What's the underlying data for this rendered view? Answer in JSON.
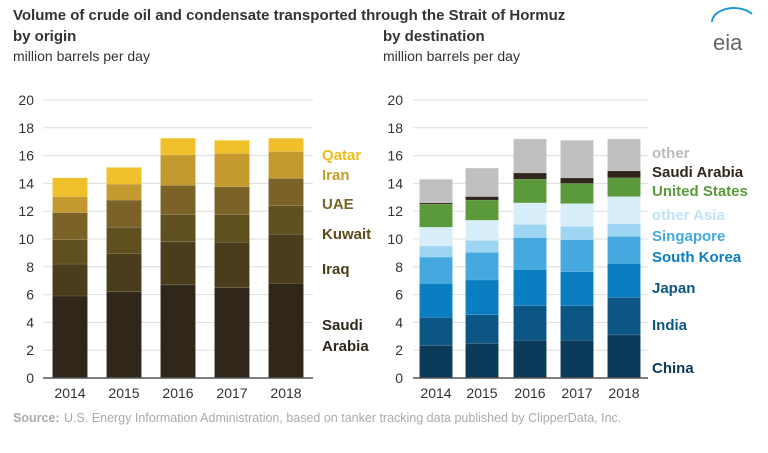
{
  "title": "Volume of crude oil and condensate transported through the Strait of Hormuz",
  "logo": "eia",
  "source_label": "Source:",
  "source_text": "U.S. Energy Information Administration, based on tanker tracking data published by ClipperData, Inc.",
  "chart_data": [
    {
      "type": "bar",
      "stacked": true,
      "title": "by origin",
      "ylabel": "million barrels per day",
      "ylim": [
        0,
        20
      ],
      "yticks": [
        0,
        2,
        4,
        6,
        8,
        10,
        12,
        14,
        16,
        18,
        20
      ],
      "grid": true,
      "legend": "right (inline labels)",
      "categories": [
        "2014",
        "2015",
        "2016",
        "2017",
        "2018"
      ],
      "series": [
        {
          "name": "Saudi Arabia",
          "color": "#30271a",
          "values": [
            5.9,
            6.2,
            6.7,
            6.5,
            6.8
          ]
        },
        {
          "name": "Iraq",
          "color": "#4a3d1c",
          "values": [
            2.3,
            2.75,
            3.1,
            3.25,
            3.55
          ]
        },
        {
          "name": "Kuwait",
          "color": "#61501f",
          "values": [
            1.75,
            1.9,
            1.95,
            2.0,
            2.05
          ]
        },
        {
          "name": "UAE",
          "color": "#7b6328",
          "values": [
            1.95,
            1.95,
            2.1,
            2.0,
            1.95
          ]
        },
        {
          "name": "Iran",
          "color": "#c49a30",
          "values": [
            1.15,
            1.15,
            2.2,
            2.4,
            1.95
          ]
        },
        {
          "name": "Qatar",
          "color": "#f0c02a",
          "values": [
            1.35,
            1.2,
            1.2,
            0.95,
            0.95
          ]
        }
      ]
    },
    {
      "type": "bar",
      "stacked": true,
      "title": "by destination",
      "ylabel": "million barrels per day",
      "ylim": [
        0,
        20
      ],
      "yticks": [
        0,
        2,
        4,
        6,
        8,
        10,
        12,
        14,
        16,
        18,
        20
      ],
      "grid": true,
      "legend": "right (inline labels)",
      "categories": [
        "2014",
        "2015",
        "2016",
        "2017",
        "2018"
      ],
      "series": [
        {
          "name": "China",
          "color": "#0b3a5a",
          "values": [
            2.35,
            2.5,
            2.7,
            2.7,
            3.1
          ]
        },
        {
          "name": "India",
          "color": "#0b5683",
          "values": [
            2.0,
            2.05,
            2.5,
            2.5,
            2.7
          ]
        },
        {
          "name": "Japan",
          "color": "#0a7ec1",
          "values": [
            2.45,
            2.5,
            2.6,
            2.45,
            2.45
          ]
        },
        {
          "name": "South Korea",
          "color": "#45a9e0",
          "values": [
            1.9,
            2.0,
            2.3,
            2.3,
            1.95
          ]
        },
        {
          "name": "Singapore",
          "color": "#9dd5f2",
          "values": [
            0.8,
            0.85,
            0.95,
            0.95,
            0.9
          ]
        },
        {
          "name": "other Asia",
          "color": "#d8eef9",
          "values": [
            1.35,
            1.45,
            1.55,
            1.65,
            1.95
          ]
        },
        {
          "name": "United States",
          "color": "#5a9a3a",
          "values": [
            1.65,
            1.45,
            1.7,
            1.45,
            1.35
          ]
        },
        {
          "name": "Saudi Arabia",
          "color": "#30271a",
          "values": [
            0.1,
            0.25,
            0.45,
            0.4,
            0.5
          ]
        },
        {
          "name": "other",
          "color": "#c0c0c0",
          "values": [
            1.7,
            2.05,
            2.45,
            2.7,
            2.3
          ]
        }
      ]
    }
  ]
}
